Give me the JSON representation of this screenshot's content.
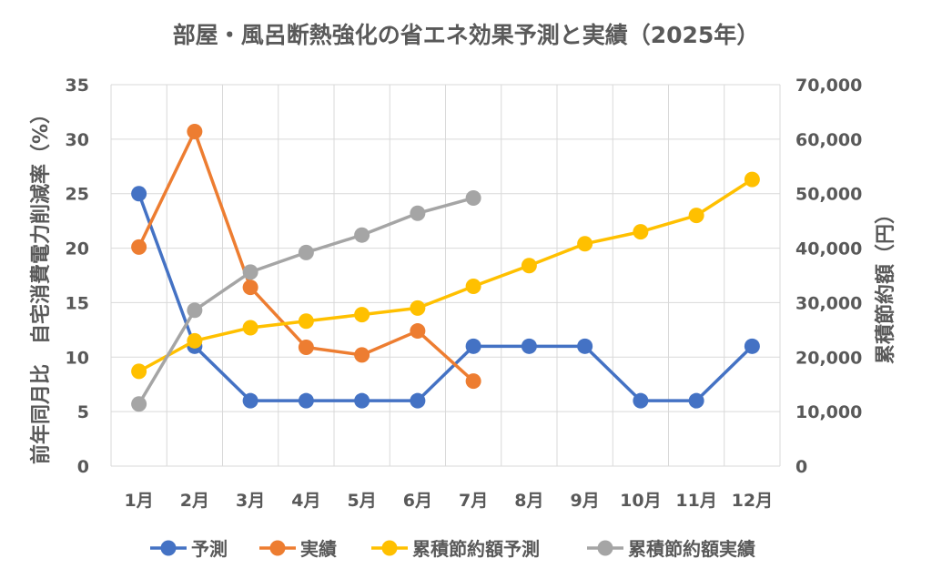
{
  "chart_data": {
    "type": "line",
    "title": "部屋・風呂断熱強化の省エネ効果予測と実績（2025年）",
    "categories": [
      "1月",
      "2月",
      "3月",
      "4月",
      "5月",
      "6月",
      "7月",
      "8月",
      "9月",
      "10月",
      "11月",
      "12月"
    ],
    "left_axis": {
      "label_lines": [
        "前年同月比　自宅消費電力削減率（%）"
      ],
      "ylim": [
        0,
        35
      ],
      "ticks": [
        "0",
        "5",
        "10",
        "15",
        "20",
        "25",
        "30",
        "35"
      ]
    },
    "right_axis": {
      "label": "累積節約額（円）",
      "ylim": [
        0,
        70000
      ],
      "ticks": [
        "0",
        "10,000",
        "20,000",
        "30,000",
        "40,000",
        "50,000",
        "60,000",
        "70,000"
      ]
    },
    "grid": true,
    "legend_position": "bottom",
    "series": [
      {
        "name": "予測",
        "axis": "left",
        "color": "#4472C4",
        "values": [
          25,
          11,
          6,
          6,
          6,
          6,
          11,
          11,
          11,
          6,
          6,
          11
        ]
      },
      {
        "name": "実績",
        "axis": "left",
        "color": "#ED7D31",
        "values": [
          20.1,
          30.7,
          16.4,
          10.9,
          10.2,
          12.4,
          7.8,
          null,
          null,
          null,
          null,
          null
        ]
      },
      {
        "name": "累積節約額予測",
        "axis": "right",
        "color": "#FFC000",
        "values": [
          17400,
          23000,
          25400,
          26600,
          27800,
          29000,
          33000,
          36800,
          40800,
          43000,
          46000,
          52600
        ]
      },
      {
        "name": "累積節約額実績",
        "axis": "right",
        "color": "#A5A5A5",
        "values": [
          11400,
          28600,
          35600,
          39200,
          42400,
          46400,
          49200,
          null,
          null,
          null,
          null,
          null
        ]
      }
    ]
  }
}
